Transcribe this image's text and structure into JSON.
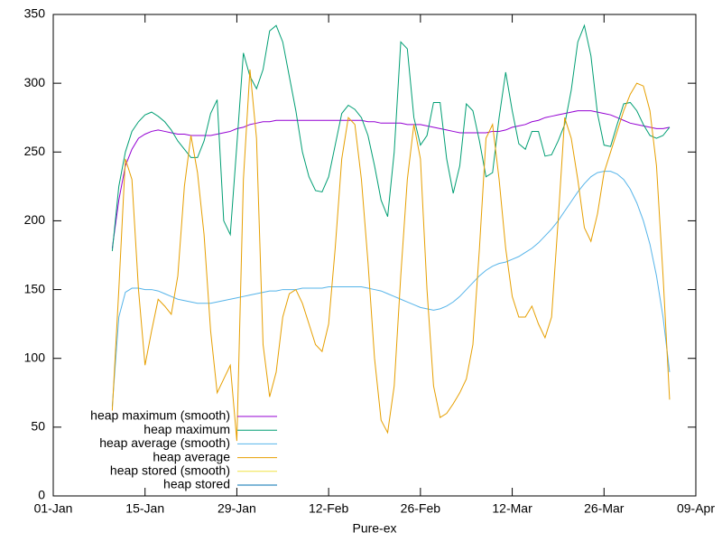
{
  "chart_data": {
    "type": "line",
    "x_label": "Pure-ex",
    "xlim": [
      0,
      98
    ],
    "xticks": [
      {
        "value": 0,
        "label": "01-Jan"
      },
      {
        "value": 14,
        "label": "15-Jan"
      },
      {
        "value": 28,
        "label": "29-Jan"
      },
      {
        "value": 42,
        "label": "12-Feb"
      },
      {
        "value": 56,
        "label": "26-Feb"
      },
      {
        "value": 70,
        "label": "12-Mar"
      },
      {
        "value": 84,
        "label": "26-Mar"
      },
      {
        "value": 98,
        "label": "09-Apr"
      }
    ],
    "ylim": [
      0,
      350
    ],
    "yticks": [
      0,
      50,
      100,
      150,
      200,
      250,
      300,
      350
    ],
    "legend": "lower left",
    "x": [
      9,
      10,
      11,
      12,
      13,
      14,
      15,
      16,
      17,
      18,
      19,
      20,
      21,
      22,
      23,
      24,
      25,
      26,
      27,
      28,
      29,
      30,
      31,
      32,
      33,
      34,
      35,
      36,
      37,
      38,
      39,
      40,
      41,
      42,
      43,
      44,
      45,
      46,
      47,
      48,
      49,
      50,
      51,
      52,
      53,
      54,
      55,
      56,
      57,
      58,
      59,
      60,
      61,
      62,
      63,
      64,
      65,
      66,
      67,
      68,
      69,
      70,
      71,
      72,
      73,
      74,
      75,
      76,
      77,
      78,
      79,
      80,
      81,
      82,
      83,
      84,
      85,
      86,
      87,
      88,
      89,
      90,
      91,
      92,
      93,
      94
    ],
    "series": [
      {
        "name": "heap maximum (smooth)",
        "color": "#9400d3",
        "values": [
          180,
          215,
          240,
          252,
          260,
          263,
          265,
          266,
          265,
          264,
          263,
          263,
          262,
          262,
          262,
          262,
          263,
          264,
          265,
          267,
          268,
          270,
          271,
          272,
          272,
          273,
          273,
          273,
          273,
          273,
          273,
          273,
          273,
          273,
          273,
          273,
          273,
          273,
          273,
          272,
          272,
          271,
          271,
          271,
          271,
          270,
          270,
          270,
          269,
          268,
          267,
          266,
          265,
          264,
          264,
          264,
          264,
          264,
          265,
          265,
          266,
          268,
          269,
          270,
          272,
          273,
          275,
          276,
          277,
          278,
          279,
          280,
          280,
          280,
          279,
          278,
          277,
          275,
          273,
          271,
          270,
          269,
          268,
          267,
          267,
          268
        ]
      },
      {
        "name": "heap maximum",
        "color": "#009e73",
        "values": [
          178,
          225,
          250,
          265,
          272,
          277,
          279,
          276,
          272,
          266,
          258,
          252,
          246,
          246,
          258,
          278,
          288,
          200,
          190,
          255,
          322,
          305,
          296,
          310,
          338,
          342,
          330,
          305,
          280,
          250,
          232,
          222,
          221,
          232,
          255,
          278,
          284,
          281,
          275,
          262,
          240,
          215,
          203,
          250,
          330,
          325,
          275,
          255,
          262,
          286,
          286,
          245,
          220,
          240,
          285,
          280,
          258,
          232,
          235,
          275,
          308,
          280,
          256,
          252,
          265,
          265,
          247,
          248,
          258,
          270,
          295,
          330,
          342,
          320,
          278,
          255,
          254,
          270,
          285,
          286,
          280,
          270,
          262,
          260,
          262,
          268
        ]
      },
      {
        "name": "heap average (smooth)",
        "color": "#56b4e9",
        "values": [
          65,
          130,
          148,
          151,
          151,
          150,
          150,
          149,
          147,
          145,
          143,
          142,
          141,
          140,
          140,
          140,
          141,
          142,
          143,
          144,
          145,
          146,
          147,
          148,
          149,
          149,
          150,
          150,
          150,
          151,
          151,
          151,
          151,
          152,
          152,
          152,
          152,
          152,
          152,
          151,
          150,
          149,
          147,
          145,
          143,
          141,
          139,
          137,
          136,
          135,
          136,
          138,
          141,
          145,
          150,
          155,
          160,
          164,
          167,
          169,
          170,
          172,
          174,
          177,
          180,
          184,
          189,
          194,
          200,
          207,
          214,
          221,
          227,
          232,
          235,
          236,
          236,
          234,
          230,
          223,
          213,
          200,
          183,
          160,
          130,
          90
        ]
      },
      {
        "name": "heap average",
        "color": "#e69f00",
        "values": [
          62,
          150,
          245,
          230,
          150,
          95,
          120,
          143,
          138,
          132,
          160,
          225,
          262,
          235,
          190,
          120,
          75,
          85,
          95,
          40,
          230,
          310,
          260,
          110,
          72,
          90,
          130,
          147,
          150,
          140,
          125,
          110,
          105,
          125,
          180,
          245,
          275,
          270,
          230,
          170,
          100,
          55,
          46,
          80,
          160,
          230,
          270,
          245,
          150,
          80,
          57,
          60,
          67,
          75,
          85,
          110,
          180,
          260,
          270,
          230,
          180,
          145,
          130,
          130,
          138,
          125,
          115,
          130,
          200,
          275,
          260,
          230,
          195,
          185,
          205,
          235,
          250,
          265,
          280,
          292,
          300,
          298,
          280,
          240,
          160,
          70
        ]
      },
      {
        "name": "heap stored (smooth)",
        "color": "#f0e442",
        "values": [
          null,
          null,
          null,
          null,
          null,
          null,
          null,
          null,
          null,
          null,
          null,
          null,
          null,
          null,
          null,
          null,
          null,
          null,
          null,
          null,
          null,
          null,
          null,
          null,
          null,
          null,
          null,
          null,
          null,
          null,
          null,
          null,
          null,
          null,
          null,
          null,
          null,
          null,
          null,
          null,
          null,
          null,
          null,
          null,
          null,
          null,
          null,
          null,
          null,
          null,
          null,
          null,
          null,
          null,
          null,
          null,
          null,
          null,
          null,
          null,
          null,
          null,
          null,
          null,
          null,
          null,
          null,
          null,
          null,
          null,
          null,
          null,
          null,
          null,
          null,
          null,
          null,
          null,
          null,
          null,
          null,
          null,
          null,
          null,
          null,
          null
        ]
      },
      {
        "name": "heap stored",
        "color": "#0072b2",
        "values": [
          null,
          null,
          null,
          null,
          null,
          null,
          null,
          null,
          null,
          null,
          null,
          null,
          null,
          null,
          null,
          null,
          null,
          null,
          null,
          null,
          null,
          null,
          null,
          null,
          null,
          null,
          null,
          null,
          null,
          null,
          null,
          null,
          null,
          null,
          null,
          null,
          null,
          null,
          null,
          null,
          null,
          null,
          null,
          null,
          null,
          null,
          null,
          null,
          null,
          null,
          null,
          null,
          null,
          null,
          null,
          null,
          null,
          null,
          null,
          null,
          null,
          null,
          null,
          null,
          null,
          null,
          null,
          null,
          null,
          null,
          null,
          null,
          null,
          null,
          null,
          null,
          null,
          null,
          null,
          null,
          null,
          null,
          null,
          null,
          null,
          null
        ]
      }
    ]
  }
}
